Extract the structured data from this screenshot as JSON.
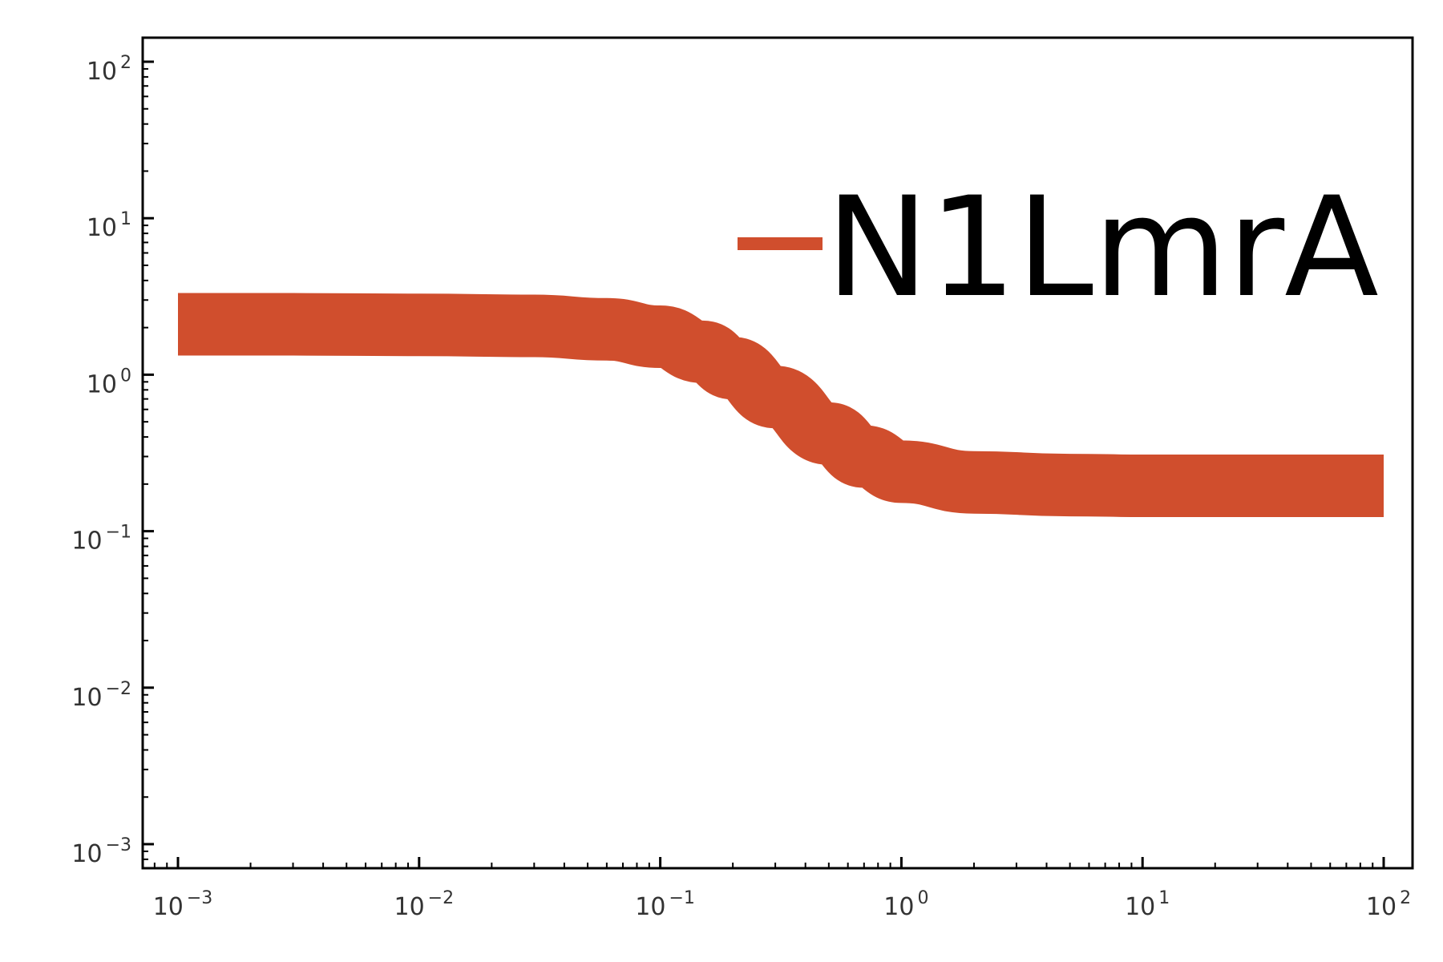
{
  "chart_data": {
    "type": "line",
    "title": "",
    "xlabel": "",
    "ylabel": "",
    "xscale": "log",
    "yscale": "log",
    "xlim": [
      0.001,
      100
    ],
    "ylim": [
      0.001,
      100
    ],
    "x_ticks": [
      {
        "base": "10",
        "exp": "−3",
        "value": 0.001
      },
      {
        "base": "10",
        "exp": "−2",
        "value": 0.01
      },
      {
        "base": "10",
        "exp": "−1",
        "value": 0.1
      },
      {
        "base": "10",
        "exp": "0",
        "value": 1
      },
      {
        "base": "10",
        "exp": "1",
        "value": 10
      },
      {
        "base": "10",
        "exp": "2",
        "value": 100
      }
    ],
    "y_ticks": [
      {
        "base": "10",
        "exp": "−3",
        "value": 0.001
      },
      {
        "base": "10",
        "exp": "−2",
        "value": 0.01
      },
      {
        "base": "10",
        "exp": "−1",
        "value": 0.1
      },
      {
        "base": "10",
        "exp": "0",
        "value": 1
      },
      {
        "base": "10",
        "exp": "1",
        "value": 10
      },
      {
        "base": "10",
        "exp": "2",
        "value": 100
      }
    ],
    "grid": false,
    "legend": {
      "position": "top-right"
    },
    "series": [
      {
        "name": "N1LmrA",
        "color": "#d04e2d",
        "band": "thick line",
        "points": [
          {
            "x": 0.001,
            "y": 2.1
          },
          {
            "x": 0.003,
            "y": 2.1
          },
          {
            "x": 0.01,
            "y": 2.08
          },
          {
            "x": 0.03,
            "y": 2.05
          },
          {
            "x": 0.06,
            "y": 1.95
          },
          {
            "x": 0.1,
            "y": 1.75
          },
          {
            "x": 0.15,
            "y": 1.4
          },
          {
            "x": 0.2,
            "y": 1.1
          },
          {
            "x": 0.3,
            "y": 0.72
          },
          {
            "x": 0.5,
            "y": 0.42
          },
          {
            "x": 0.7,
            "y": 0.3
          },
          {
            "x": 1,
            "y": 0.24
          },
          {
            "x": 2,
            "y": 0.205
          },
          {
            "x": 5,
            "y": 0.197
          },
          {
            "x": 10,
            "y": 0.195
          },
          {
            "x": 30,
            "y": 0.195
          },
          {
            "x": 100,
            "y": 0.195
          }
        ]
      }
    ]
  }
}
